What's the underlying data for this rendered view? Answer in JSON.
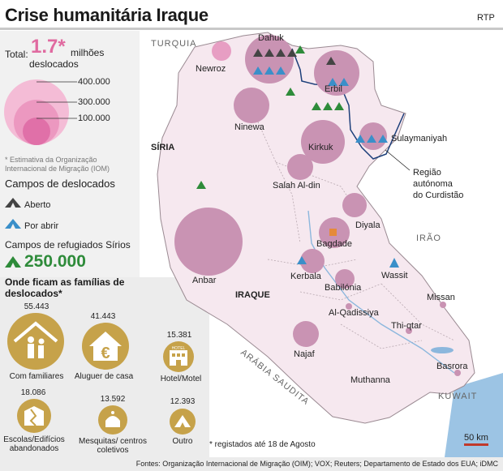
{
  "header": {
    "title": "Crise humanitária Iraque",
    "brand": "RTP"
  },
  "total": {
    "label": "Total:",
    "value": "1.7*",
    "unit_line1": "milhões",
    "unit_line2": "deslocados"
  },
  "size_legend": [
    "400.000",
    "300.000",
    "100.000"
  ],
  "note_oim": "* Estimativa da Organização Internacional de Migração (IOM)",
  "camps": {
    "title": "Campos de deslocados",
    "open": "Aberto",
    "soon": "Por abrir"
  },
  "refugees": {
    "title": "Campos de refugiados Sírios",
    "value": "250.000"
  },
  "families": {
    "title": "Onde ficam as famílias de deslocados*",
    "items": [
      {
        "value": "55.443",
        "label": "Com familiares"
      },
      {
        "value": "41.443",
        "label": "Aluguer de casa"
      },
      {
        "value": "15.381",
        "label": "Hotel/Motel"
      },
      {
        "value": "18.086",
        "label": "Escolas/Edifícios abandonados"
      },
      {
        "value": "13.592",
        "label": "Mesquitas/ centros coletivos"
      },
      {
        "value": "12.393",
        "label": "Outro"
      }
    ],
    "hotel_sign": "HOTEL"
  },
  "registered_note": "* registados até 18 de Agosto",
  "sources": "Fontes: Organização Internacional de Migração (OIM); VOX; Reuters; Departamento de Estado dos EUA; iDMC",
  "map": {
    "countries": [
      "TURQUIA",
      "SÍRIA",
      "IRAQUE",
      "IRÃO",
      "ARÁBIA SAUDITA",
      "KUWAIT"
    ],
    "kurdistan": "Região autónoma do Curdistão",
    "scale": "50 km",
    "provinces": [
      "Dahuk",
      "Newroz",
      "Erbil",
      "Ninewa",
      "Kirkuk",
      "Sulaymaniyah",
      "Salah Al-din",
      "Diyala",
      "Bagdade",
      "Anbar",
      "Kerbala",
      "Babilónia",
      "Wassit",
      "Missan",
      "Al-Qadissiya",
      "Thi-qtar",
      "Najaf",
      "Basrora",
      "Muthanna"
    ],
    "colors": {
      "bubble": "#c993b3",
      "bubble_light": "#e79ec3",
      "land": "#f6e8ef",
      "sea": "#9cc4e4",
      "camp_open": "#2e8b3a",
      "camp_soon": "#3a8fc9",
      "syria_camp": "#2e8b3a"
    }
  }
}
